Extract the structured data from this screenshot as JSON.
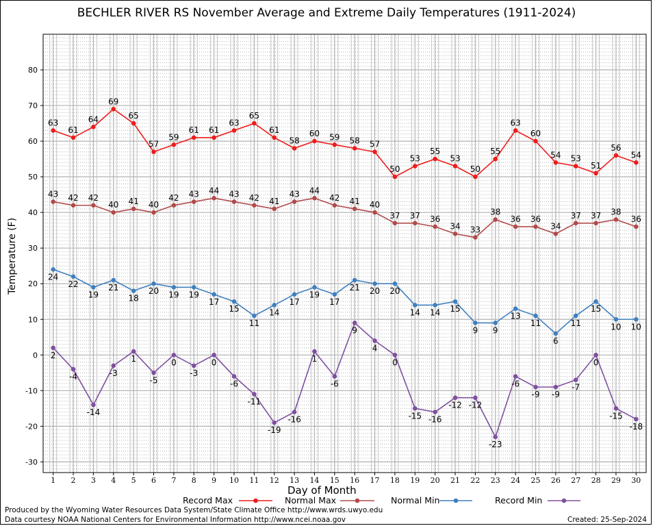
{
  "chart_data": {
    "type": "line",
    "title": "BECHLER RIVER RS November Average and Extreme Daily Temperatures (1911-2024)",
    "xlabel": "Day of Month",
    "ylabel": "Temperature (F)",
    "ylim": [
      -33,
      90
    ],
    "yticks": [
      -30,
      -20,
      -10,
      0,
      10,
      20,
      30,
      40,
      50,
      60,
      70,
      80
    ],
    "x": [
      1,
      2,
      3,
      4,
      5,
      6,
      7,
      8,
      9,
      10,
      11,
      12,
      13,
      14,
      15,
      16,
      17,
      18,
      19,
      20,
      21,
      22,
      23,
      24,
      25,
      26,
      27,
      28,
      29,
      30
    ],
    "grid": true,
    "legend": "bottom",
    "series": [
      {
        "name": "Record Max",
        "color": "#ee1c1c",
        "label_pos": "above",
        "values": [
          63,
          61,
          64,
          69,
          65,
          57,
          59,
          61,
          61,
          63,
          65,
          61,
          58,
          60,
          59,
          58,
          57,
          50,
          53,
          55,
          53,
          50,
          55,
          63,
          60,
          54,
          53,
          51,
          56,
          54
        ]
      },
      {
        "name": "Normal Max",
        "color": "#b24a4a",
        "label_pos": "above",
        "values": [
          43,
          42,
          42,
          40,
          41,
          40,
          42,
          43,
          44,
          43,
          42,
          41,
          43,
          44,
          42,
          41,
          40,
          37,
          37,
          36,
          34,
          33,
          38,
          36,
          36,
          34,
          37,
          37,
          38,
          36
        ]
      },
      {
        "name": "Normal Min",
        "color": "#3f7fbf",
        "label_pos": "below",
        "values": [
          24,
          22,
          19,
          21,
          18,
          20,
          19,
          19,
          17,
          15,
          11,
          14,
          17,
          19,
          17,
          21,
          20,
          20,
          14,
          14,
          15,
          9,
          9,
          13,
          11,
          6,
          11,
          15,
          10,
          10
        ]
      },
      {
        "name": "Record Min",
        "color": "#7f4f9f",
        "label_pos": "below",
        "values": [
          2,
          -4,
          -14,
          -3,
          1,
          -5,
          0,
          -3,
          0,
          -6,
          -11,
          -19,
          -16,
          1,
          -6,
          9,
          4,
          0,
          -15,
          -16,
          -12,
          -12,
          -23,
          -6,
          -9,
          -9,
          -7,
          0,
          -15,
          -18
        ]
      }
    ]
  },
  "footer": {
    "line1": "Produced by the Wyoming Water Resources Data System/State Climate Office http://www.wrds.uwyo.edu",
    "line2": "Data courtesy NOAA National Centers for Environmental Information http://www.ncei.noaa.gov",
    "created": "Created:  25-Sep-2024"
  }
}
